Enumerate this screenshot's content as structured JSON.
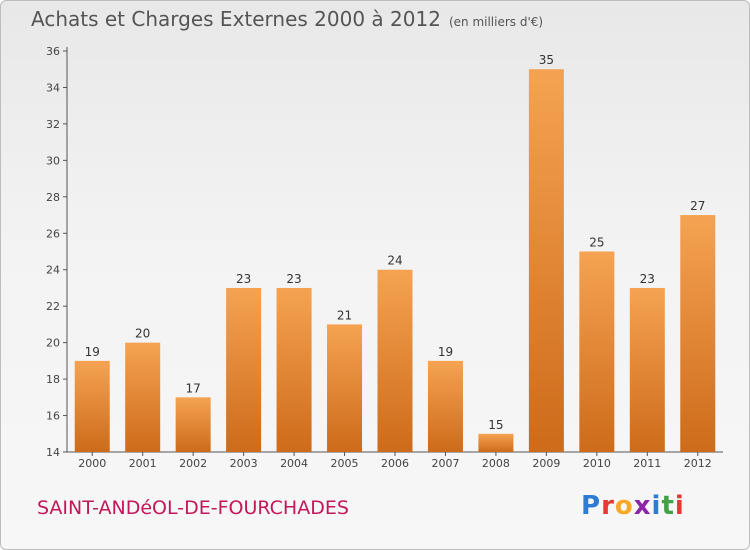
{
  "header": {
    "title": "Achats et Charges Externes 2000 à 2012",
    "unit": "(en milliers d'€)"
  },
  "footer": {
    "commune": "SAINT-ANDéOL-DE-FOURCHADES",
    "logo_letters": [
      "P",
      "r",
      "o",
      "x",
      "i",
      "t",
      "i"
    ],
    "logo_colors": [
      "#2e7bd6",
      "#e53935",
      "#f9a825",
      "#8e24aa",
      "#2e7bd6",
      "#43a047",
      "#e53935"
    ]
  },
  "chart_data": {
    "type": "bar",
    "title": "Achats et Charges Externes 2000 à 2012",
    "subtitle": "(en milliers d'€)",
    "categories": [
      "2000",
      "2001",
      "2002",
      "2003",
      "2004",
      "2005",
      "2006",
      "2007",
      "2008",
      "2009",
      "2010",
      "2011",
      "2012"
    ],
    "values": [
      19,
      20,
      17,
      23,
      23,
      21,
      24,
      19,
      15,
      35,
      25,
      23,
      27
    ],
    "ylim": [
      14,
      36
    ],
    "yticks": [
      14,
      16,
      18,
      20,
      22,
      24,
      26,
      28,
      30,
      32,
      34,
      36
    ],
    "grid": false,
    "bar_color_light": "#f5a352",
    "bar_color_dark": "#cd6b1a",
    "axis_color": "#555555"
  }
}
